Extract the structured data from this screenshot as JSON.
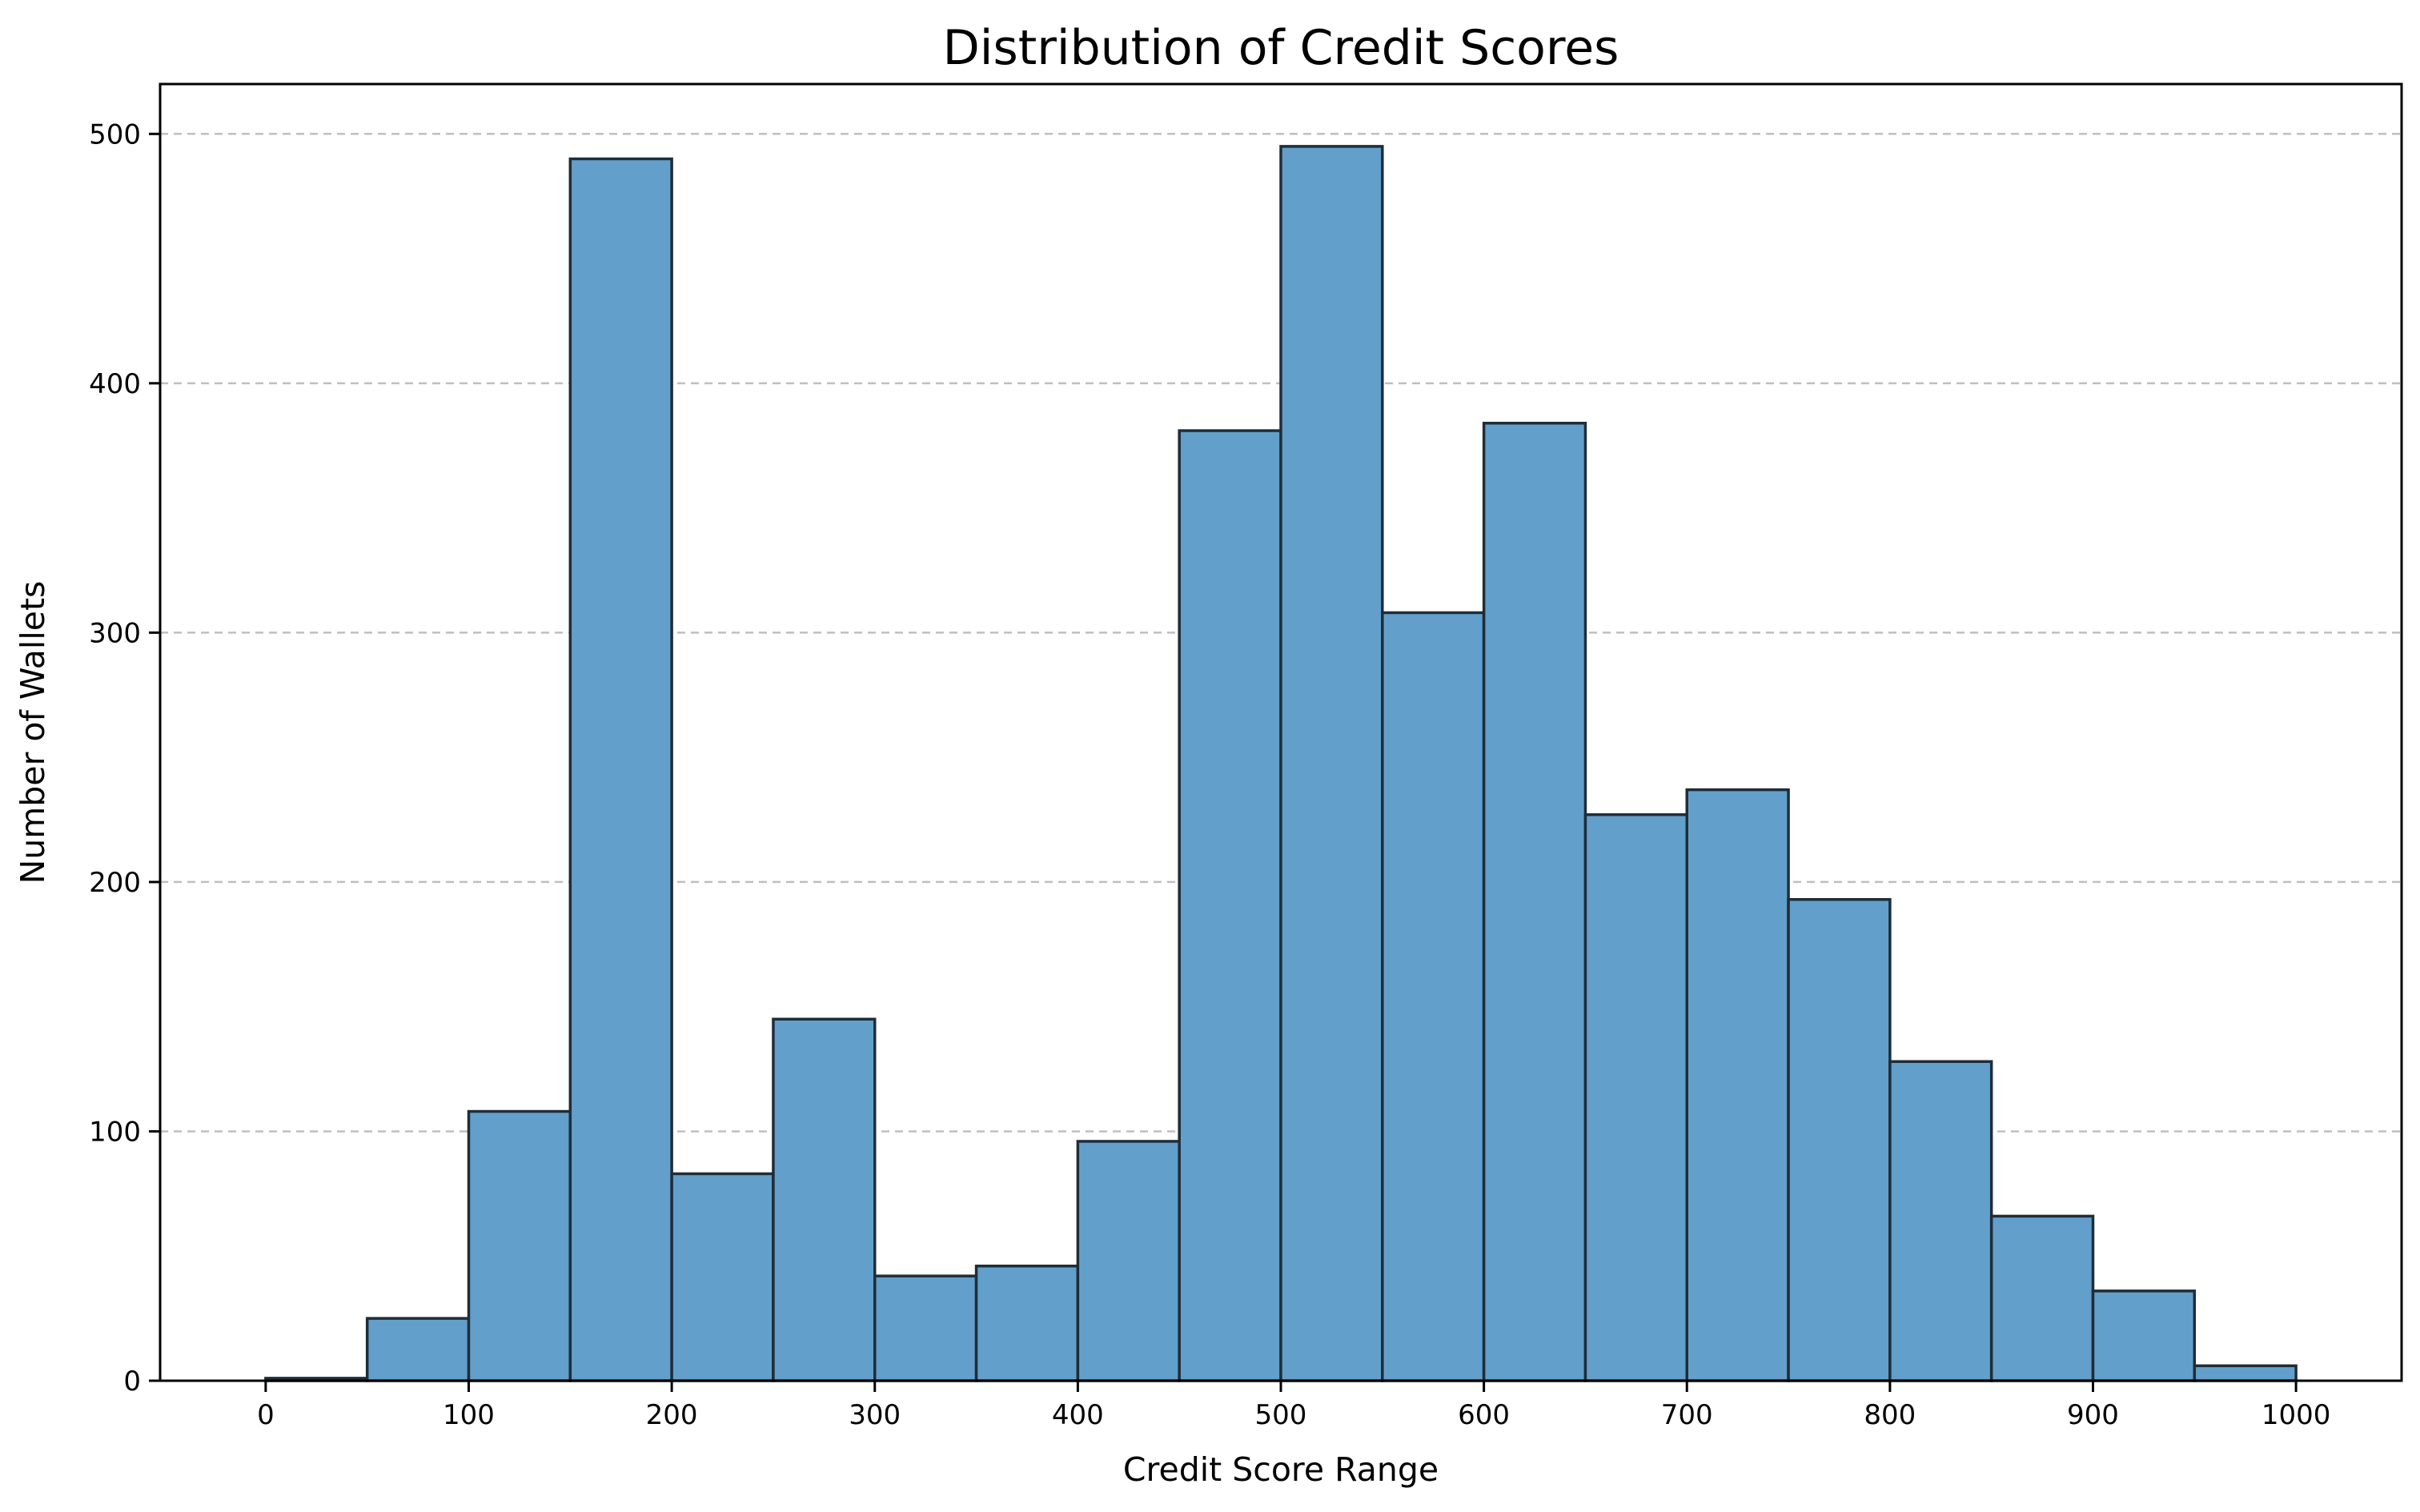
{
  "chart_data": {
    "type": "bar",
    "title": "Distribution of Credit Scores",
    "xlabel": "Credit Score Range",
    "ylabel": "Number of Wallets",
    "xlim": [
      -52,
      1052
    ],
    "ylim": [
      0,
      520
    ],
    "grid": "y-dashed",
    "bin_edges": [
      0,
      50,
      100,
      150,
      200,
      250,
      300,
      350,
      400,
      450,
      500,
      550,
      600,
      650,
      700,
      750,
      800,
      850,
      900,
      950,
      1000
    ],
    "values": [
      1,
      25,
      108,
      490,
      83,
      145,
      42,
      46,
      96,
      381,
      495,
      308,
      384,
      227,
      237,
      193,
      128,
      66,
      36,
      6
    ],
    "x_ticks": [
      0,
      100,
      200,
      300,
      400,
      500,
      600,
      700,
      800,
      900,
      1000
    ],
    "x_tick_labels": [
      "0",
      "100",
      "200",
      "300",
      "400",
      "500",
      "600",
      "700",
      "800",
      "900",
      "1000"
    ],
    "y_ticks": [
      0,
      100,
      200,
      300,
      400,
      500
    ],
    "y_tick_labels": [
      "0",
      "100",
      "200",
      "300",
      "400",
      "500"
    ],
    "colors": {
      "bar_fill": "#62a0cb",
      "bar_edge": "#1f2d38",
      "grid": "#bfbfbf",
      "axes": "#000000"
    }
  }
}
